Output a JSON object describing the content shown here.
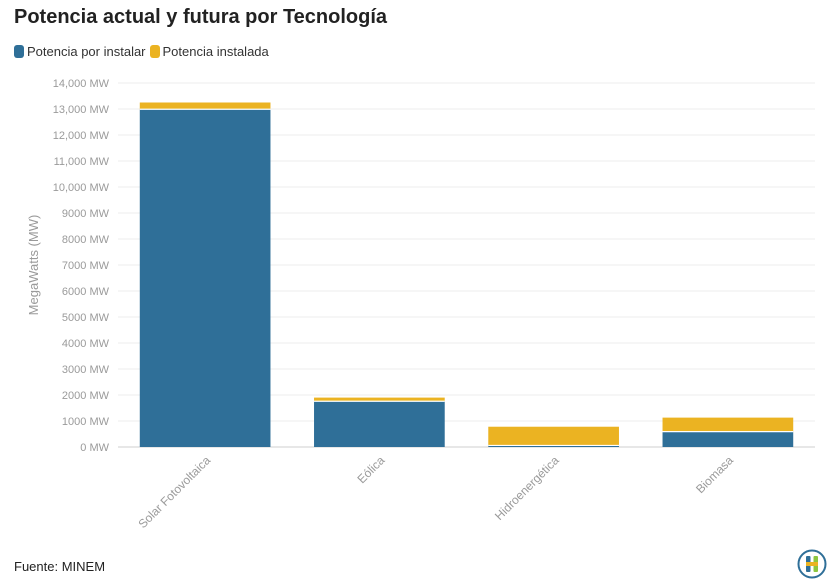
{
  "title": "Potencia actual y futura por Tecnología",
  "footer": "Fuente: MINEM",
  "chart_data": {
    "type": "bar",
    "stacked": true,
    "title": "Potencia actual y futura por Tecnología",
    "ylabel": "MegaWatts (MW)",
    "xlabel": "",
    "categories": [
      "Solar Fotovoltaica",
      "Eólica",
      "Hidroenergética",
      "Biomasa"
    ],
    "series": [
      {
        "name": "Potencia por instalar",
        "color": "#2f6f98",
        "values": [
          12990,
          1760,
          60,
          590
        ]
      },
      {
        "name": "Potencia instalada",
        "color": "#ebb322",
        "values": [
          260,
          140,
          720,
          540
        ]
      }
    ],
    "ylim": [
      0,
      14000
    ],
    "yticks": [
      0,
      1000,
      2000,
      3000,
      4000,
      5000,
      6000,
      7000,
      8000,
      9000,
      10000,
      11000,
      12000,
      13000,
      14000
    ],
    "ytick_labels": [
      "0 MW",
      "1000 MW",
      "2000 MW",
      "3000 MW",
      "4000 MW",
      "5000 MW",
      "6000 MW",
      "7000 MW",
      "8000 MW",
      "9000 MW",
      "10,000 MW",
      "11,000 MW",
      "12,000 MW",
      "13,000 MW",
      "14,000 MW"
    ],
    "grid": true,
    "legend_position": "top-left"
  }
}
